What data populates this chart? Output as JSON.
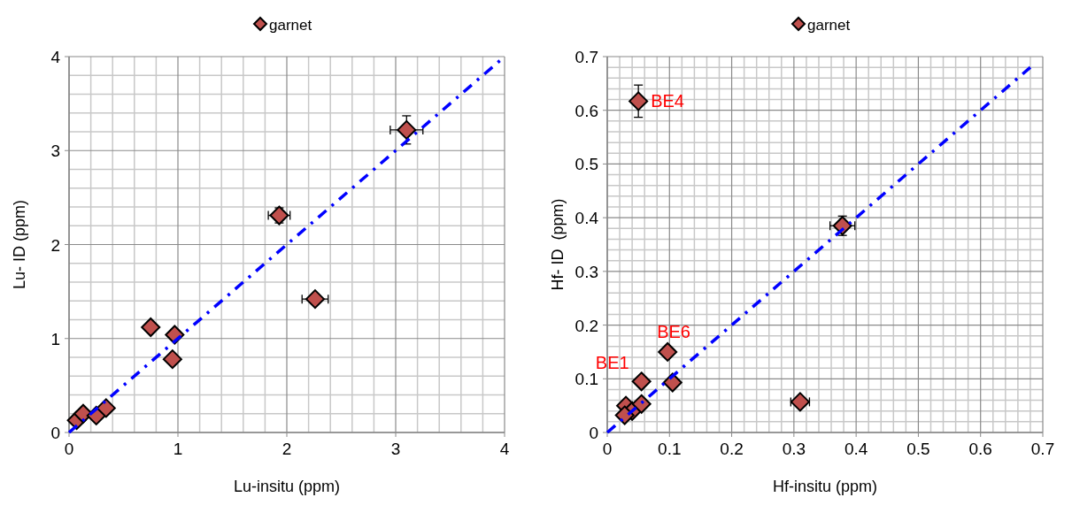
{
  "chart_data": [
    {
      "type": "scatter",
      "xlabel": "Lu-insitu (ppm)",
      "ylabel": "Lu- ID (ppm)",
      "xlim": [
        0,
        4
      ],
      "ylim": [
        0,
        4
      ],
      "xticks": [
        0,
        1,
        2,
        3,
        4
      ],
      "yticks": [
        0,
        1,
        2,
        3,
        4
      ],
      "grid": true,
      "legend": "top",
      "series": [
        {
          "name": "garnet",
          "color": "#c0504d",
          "marker": "diamond",
          "x": [
            0.07,
            0.13,
            0.25,
            0.34,
            0.75,
            0.97,
            0.95,
            1.93,
            2.26,
            3.1
          ],
          "values": [
            0.13,
            0.2,
            0.18,
            0.26,
            1.12,
            1.04,
            0.78,
            2.31,
            1.42,
            3.22
          ],
          "errors": [
            null,
            null,
            null,
            null,
            null,
            null,
            null,
            0.08,
            0.05,
            0.15
          ],
          "xerrors": [
            null,
            null,
            null,
            null,
            null,
            null,
            null,
            0.1,
            0.12,
            0.15
          ]
        },
        {
          "type": "line",
          "color": "#0000ff",
          "line_style": "dashdot",
          "marker": "none",
          "x": [
            0,
            4
          ],
          "values": [
            0,
            4
          ]
        }
      ]
    },
    {
      "type": "scatter",
      "xlabel": "Hf-insitu (ppm)",
      "ylabel": "Hf- ID  (ppm)",
      "xlim": [
        0,
        0.7
      ],
      "ylim": [
        0,
        0.7
      ],
      "xticks": [
        0,
        0.1,
        0.2,
        0.3,
        0.4,
        0.5,
        0.6,
        0.7
      ],
      "yticks": [
        0,
        0.1,
        0.2,
        0.3,
        0.4,
        0.5,
        0.6,
        0.7
      ],
      "grid": true,
      "legend": "top",
      "annotations": [
        {
          "text": "BE4",
          "x": 0.05,
          "y": 0.617
        },
        {
          "text": "BE6",
          "x": 0.097,
          "y": 0.15
        },
        {
          "text": "BE1",
          "x": 0.055,
          "y": 0.095
        }
      ],
      "series": [
        {
          "name": "garnet",
          "color": "#c0504d",
          "marker": "diamond",
          "x": [
            0.05,
            0.097,
            0.105,
            0.055,
            0.03,
            0.04,
            0.028,
            0.055,
            0.31,
            0.378
          ],
          "values": [
            0.617,
            0.15,
            0.093,
            0.095,
            0.05,
            0.04,
            0.032,
            0.053,
            0.057,
            0.385
          ],
          "errors": [
            0.03,
            null,
            null,
            null,
            null,
            null,
            null,
            null,
            null,
            0.018
          ],
          "xerrors": [
            null,
            null,
            null,
            null,
            null,
            null,
            null,
            null,
            0.015,
            0.02
          ]
        },
        {
          "type": "line",
          "color": "#0000ff",
          "line_style": "dashdot",
          "marker": "none",
          "x": [
            0,
            0.68
          ],
          "values": [
            0,
            0.68
          ]
        }
      ]
    }
  ]
}
